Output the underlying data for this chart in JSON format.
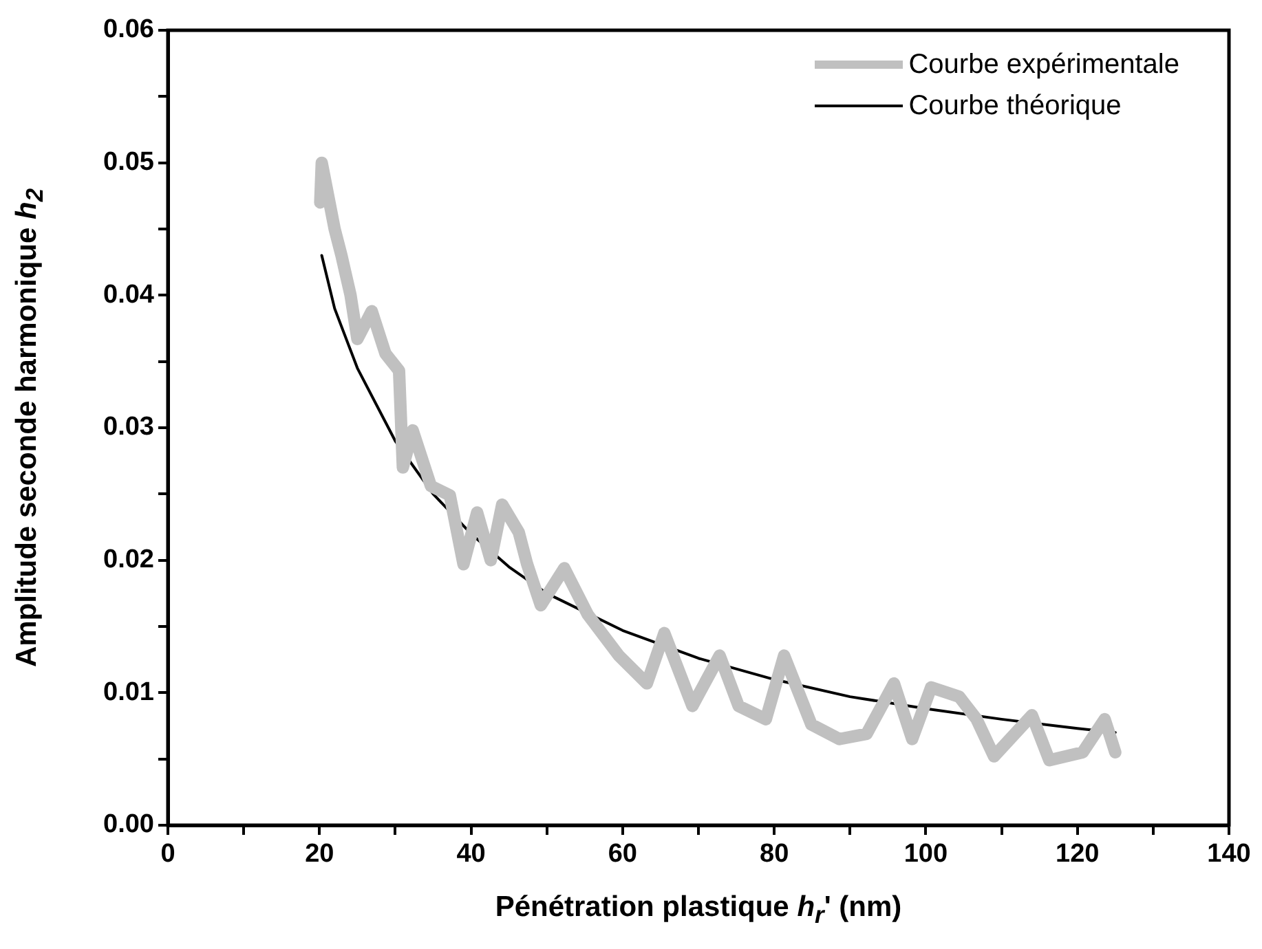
{
  "chart_data": {
    "type": "line",
    "xlabel": "Pénétration plastique h$_{r}$' (nm)",
    "ylabel": "Amplitude seconde harmonique h$_{2}$",
    "xlim": [
      0,
      140
    ],
    "xticks": [
      0,
      {
        "value": 10,
        "label": null
      },
      20,
      {
        "value": 30,
        "label": null
      },
      40,
      {
        "value": 50,
        "label": null
      },
      60,
      {
        "value": 70,
        "label": null
      },
      80,
      {
        "value": 90,
        "label": null
      },
      100,
      {
        "value": 110,
        "label": null
      },
      120,
      {
        "value": 130,
        "label": null
      },
      140
    ],
    "ylim": [
      0,
      0.06
    ],
    "yticks": [
      {
        "value": 0,
        "label": "0.00"
      },
      {
        "value": 0.005,
        "label": null
      },
      0.01,
      {
        "value": 0.015,
        "label": null
      },
      0.02,
      {
        "value": 0.025,
        "label": null
      },
      0.03,
      {
        "value": 0.035,
        "label": null
      },
      0.04,
      {
        "value": 0.045,
        "label": null
      },
      0.05,
      {
        "value": 0.055,
        "label": null
      },
      0.06
    ],
    "grid": false,
    "legend": "top right",
    "marker": "none",
    "line_style": "solid",
    "series": [
      {
        "name": "Courbe expérimentale",
        "color": "#c0c0c0",
        "x": [
          20.1,
          20.3,
          22,
          22.9,
          23.5,
          24.1,
          25,
          26.9,
          28.7,
          30.5,
          31,
          32.3,
          34.7,
          37.2,
          39,
          40.8,
          42.6,
          44.1,
          46.3,
          47.4,
          49.2,
          52.3,
          55.4,
          59.5,
          63.2,
          65.5,
          69.2,
          72.8,
          75.3,
          78.9,
          81.3,
          84.9,
          88.6,
          92.2,
          95.8,
          98.2,
          100.7,
          104.4,
          106.7,
          109,
          114,
          116.3,
          120.7,
          123.6,
          125
        ],
        "values": [
          0.047,
          0.05,
          0.045,
          0.043,
          0.0415,
          0.04,
          0.0367,
          0.0388,
          0.0356,
          0.0343,
          0.027,
          0.0298,
          0.0256,
          0.0249,
          0.0197,
          0.0236,
          0.02,
          0.0242,
          0.0221,
          0.0197,
          0.0166,
          0.0194,
          0.0159,
          0.0128,
          0.0107,
          0.0145,
          0.009,
          0.0128,
          0.009,
          0.008,
          0.0128,
          0.0076,
          0.0065,
          0.0069,
          0.0107,
          0.0065,
          0.0104,
          0.0097,
          0.008,
          0.0052,
          0.0083,
          0.0049,
          0.0055,
          0.008,
          0.0055
        ]
      },
      {
        "name": "Courbe théorique",
        "color": "#000000",
        "x": [
          20.3,
          22,
          25,
          30,
          35,
          40,
          45,
          50,
          60,
          70,
          80,
          90,
          100,
          110,
          120,
          125
        ],
        "values": [
          0.043,
          0.039,
          0.0345,
          0.029,
          0.025,
          0.022,
          0.0195,
          0.0175,
          0.0147,
          0.0126,
          0.011,
          0.0097,
          0.0088,
          0.008,
          0.0073,
          0.007
        ]
      }
    ]
  }
}
